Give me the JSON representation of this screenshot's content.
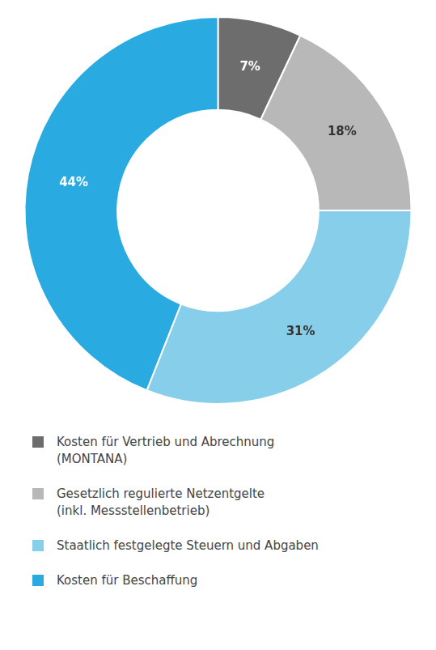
{
  "chart_data": {
    "type": "doughnut",
    "categories": [
      "Kosten für Vertrieb und Abrechnung\n(MONTANA)",
      "Gesetzlich regulierte Netzentgelte\n(inkl. Messstellenbetrieb)",
      "Staatlich festgelegte Steuern und Abgaben",
      "Kosten für Beschaffung"
    ],
    "values": [
      7,
      18,
      31,
      44
    ],
    "value_labels": [
      "7%",
      "18%",
      "31%",
      "44%"
    ],
    "colors": [
      "#6d6d6d",
      "#b8b8b8",
      "#87ceeb",
      "#29aae1"
    ],
    "data_labels": true,
    "legend": "bottom"
  }
}
